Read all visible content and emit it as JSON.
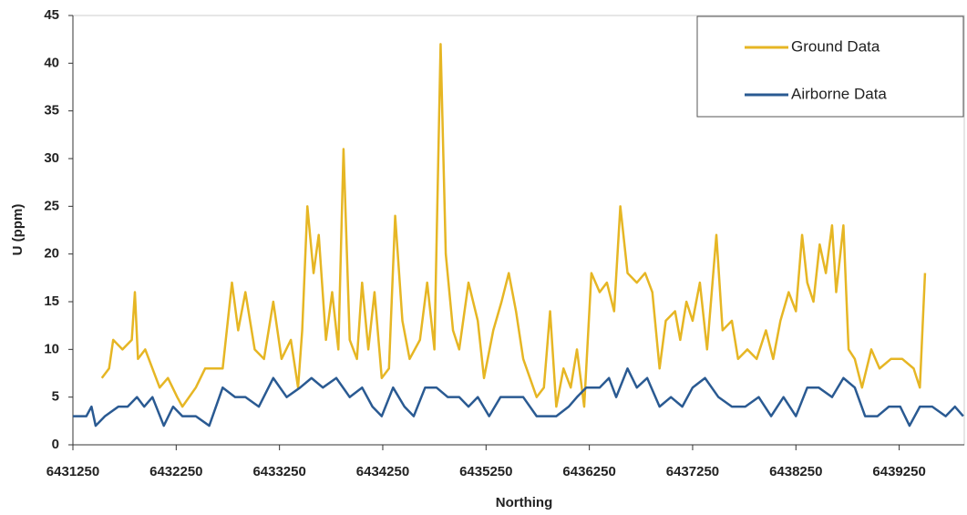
{
  "chart_data": {
    "type": "line",
    "x_label": "Northing",
    "y_label": "U (ppm)",
    "xlim": [
      6431250,
      6439880
    ],
    "ylim": [
      0,
      45
    ],
    "xticks": [
      6431250,
      6432250,
      6433250,
      6434250,
      6435250,
      6436250,
      6437250,
      6438250,
      6439250
    ],
    "yticks": [
      0,
      5,
      10,
      15,
      20,
      25,
      30,
      35,
      40,
      45
    ],
    "legend": "upper right",
    "series": [
      {
        "name": "Ground Data",
        "color": "#e6b624",
        "x": [
          6431530,
          6431600,
          6431640,
          6431730,
          6431820,
          6431850,
          6431880,
          6431950,
          6432020,
          6432090,
          6432170,
          6432260,
          6432310,
          6432440,
          6432530,
          6432700,
          6432790,
          6432850,
          6432920,
          6433010,
          6433100,
          6433190,
          6433270,
          6433360,
          6433430,
          6433470,
          6433520,
          6433580,
          6433630,
          6433700,
          6433760,
          6433820,
          6433870,
          6433930,
          6434000,
          6434050,
          6434110,
          6434170,
          6434240,
          6434310,
          6434370,
          6434440,
          6434510,
          6434610,
          6434680,
          6434750,
          6434810,
          6434860,
          6434930,
          6434990,
          6435080,
          6435170,
          6435230,
          6435320,
          6435400,
          6435470,
          6435540,
          6435610,
          6435740,
          6435810,
          6435870,
          6435930,
          6436000,
          6436070,
          6436130,
          6436200,
          6436270,
          6436350,
          6436420,
          6436490,
          6436550,
          6436620,
          6436710,
          6436790,
          6436860,
          6436930,
          6436990,
          6437080,
          6437130,
          6437190,
          6437250,
          6437320,
          6437390,
          6437480,
          6437540,
          6437630,
          6437690,
          6437780,
          6437870,
          6437960,
          6438030,
          6438100,
          6438180,
          6438250,
          6438310,
          6438360,
          6438420,
          6438480,
          6438540,
          6438600,
          6438640,
          6438710,
          6438760,
          6438820,
          6438890,
          6438980,
          6439060,
          6439170,
          6439280,
          6439390,
          6439450,
          6439500
        ],
        "values": [
          7,
          8,
          11,
          10,
          11,
          16,
          9,
          10,
          8,
          6,
          7,
          5,
          4,
          6,
          8,
          8,
          17,
          12,
          16,
          10,
          9,
          15,
          9,
          11,
          6,
          12,
          25,
          18,
          22,
          11,
          16,
          10,
          31,
          11,
          9,
          17,
          10,
          16,
          7,
          8,
          24,
          13,
          9,
          11,
          17,
          10,
          42,
          20,
          12,
          10,
          17,
          13,
          7,
          12,
          15,
          18,
          14,
          9,
          5,
          6,
          14,
          4,
          8,
          6,
          10,
          4,
          18,
          16,
          17,
          14,
          25,
          18,
          17,
          18,
          16,
          8,
          13,
          14,
          11,
          15,
          13,
          17,
          10,
          22,
          12,
          13,
          9,
          10,
          9,
          12,
          9,
          13,
          16,
          14,
          22,
          17,
          15,
          21,
          18,
          23,
          16,
          23,
          10,
          9,
          6,
          10,
          8,
          9,
          9,
          8,
          6,
          18
        ]
      },
      {
        "name": "Airborne Data",
        "color": "#2a5a92",
        "x": [
          6431250,
          6431380,
          6431430,
          6431470,
          6431560,
          6431690,
          6431780,
          6431870,
          6431940,
          6432020,
          6432130,
          6432220,
          6432310,
          6432440,
          6432570,
          6432700,
          6432820,
          6432920,
          6433050,
          6433190,
          6433320,
          6433450,
          6433560,
          6433670,
          6433800,
          6433930,
          6434050,
          6434150,
          6434240,
          6434350,
          6434460,
          6434550,
          6434660,
          6434770,
          6434880,
          6434990,
          6435080,
          6435170,
          6435280,
          6435390,
          6435490,
          6435610,
          6435740,
          6435830,
          6435930,
          6436050,
          6436130,
          6436220,
          6436350,
          6436440,
          6436510,
          6436620,
          6436710,
          6436810,
          6436930,
          6437040,
          6437150,
          6437250,
          6437370,
          6437500,
          6437630,
          6437760,
          6437890,
          6438010,
          6438130,
          6438250,
          6438360,
          6438470,
          6438600,
          6438710,
          6438820,
          6438920,
          6439040,
          6439150,
          6439260,
          6439350,
          6439450,
          6439570,
          6439700,
          6439790,
          6439870
        ],
        "values": [
          3,
          3,
          4,
          2,
          3,
          4,
          4,
          5,
          4,
          5,
          2,
          4,
          3,
          3,
          2,
          6,
          5,
          5,
          4,
          7,
          5,
          6,
          7,
          6,
          7,
          5,
          6,
          4,
          3,
          6,
          4,
          3,
          6,
          6,
          5,
          5,
          4,
          5,
          3,
          5,
          5,
          5,
          3,
          3,
          3,
          4,
          5,
          6,
          6,
          7,
          5,
          8,
          6,
          7,
          4,
          5,
          4,
          6,
          7,
          5,
          4,
          4,
          5,
          3,
          5,
          3,
          6,
          6,
          5,
          7,
          6,
          3,
          3,
          4,
          4,
          2,
          4,
          4,
          3,
          4,
          3
        ]
      }
    ]
  }
}
